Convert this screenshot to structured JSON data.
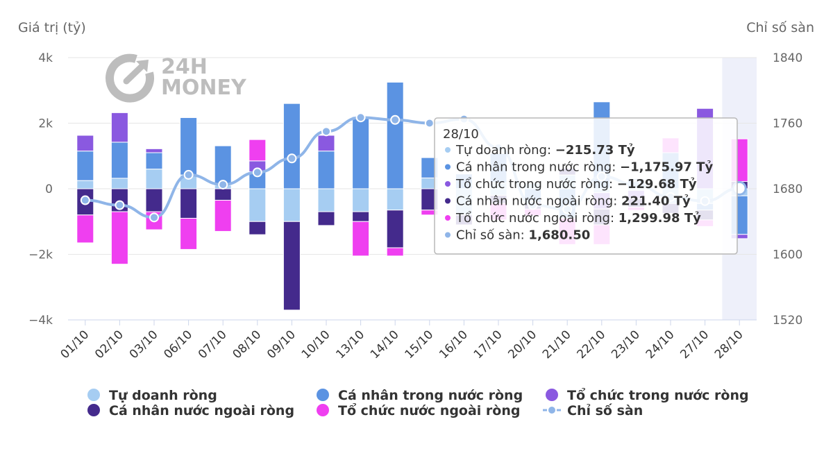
{
  "colors": {
    "tu_doanh": "#a6cdf2",
    "ca_nhan_tn": "#5b93e2",
    "to_chuc_tn": "#8a59e0",
    "ca_nhan_nn": "#442a8c",
    "to_chuc_nn": "#ef3ff0",
    "index": "#8fb5e8",
    "grid": "#e6e6e6",
    "highlight": "#eef0fa"
  },
  "watermark": {
    "line1": "24H",
    "line2": "MONEY"
  },
  "chart_data": {
    "type": "bar",
    "stacked": true,
    "y_left_title": "Giá trị (tỷ)",
    "y_right_title": "Chỉ số sàn",
    "y_left_range": [
      -4000,
      4000
    ],
    "y_right_range": [
      1520,
      1840
    ],
    "y_left_ticks": [
      "4k",
      "2k",
      "0",
      "−2k",
      "−4k"
    ],
    "y_right_ticks": [
      "1840",
      "1760",
      "1680",
      "1600",
      "1520"
    ],
    "grid": true,
    "legend_position": "bottom",
    "categories": [
      "01/10",
      "02/10",
      "03/10",
      "06/10",
      "07/10",
      "08/10",
      "09/10",
      "10/10",
      "13/10",
      "14/10",
      "15/10",
      "16/10",
      "17/10",
      "20/10",
      "21/10",
      "22/10",
      "23/10",
      "24/10",
      "27/10",
      "28/10"
    ],
    "series": [
      {
        "name": "Tự doanh ròng",
        "key": "tu_doanh",
        "values": [
          250,
          320,
          600,
          420,
          110,
          0,
          0,
          0,
          0,
          0,
          330,
          0,
          180,
          170,
          420,
          -120,
          0,
          0,
          -450,
          -215.73
        ],
        "hidden_values": [
          0,
          0,
          0,
          0,
          0,
          -1000,
          -1000,
          -700,
          -700,
          -650,
          0,
          -800,
          -200,
          0,
          0,
          0,
          -50,
          -450,
          0,
          0
        ]
      },
      {
        "name": "Cá nhân trong nước ròng",
        "key": "ca_nhan_tn",
        "values": [
          900,
          1100,
          500,
          1750,
          1200,
          520,
          2600,
          1150,
          2200,
          3250,
          620,
          450,
          900,
          -420,
          -900,
          2650,
          300,
          1100,
          -200,
          -1175.97
        ]
      },
      {
        "name": "Tổ chức trong nước ròng",
        "key": "to_chuc_tn",
        "values": [
          480,
          900,
          120,
          0,
          0,
          330,
          0,
          480,
          0,
          0,
          0,
          0,
          0,
          0,
          0,
          -500,
          -250,
          0,
          2450,
          -129.68
        ]
      },
      {
        "name": "Cá nhân nước ngoài ròng",
        "key": "ca_nhan_nn",
        "values": [
          -800,
          -700,
          -700,
          -900,
          -350,
          -400,
          -2700,
          -420,
          -300,
          -1150,
          -650,
          -300,
          -250,
          -200,
          200,
          -480,
          -260,
          -300,
          -300,
          221.4
        ]
      },
      {
        "name": "Tổ chức nước ngoài ròng",
        "key": "to_chuc_nn",
        "values": [
          -850,
          -1600,
          -550,
          -950,
          -950,
          650,
          0,
          0,
          -1050,
          -250,
          -150,
          0,
          -500,
          -200,
          -800,
          -600,
          -100,
          450,
          -200,
          1299.98
        ]
      }
    ],
    "line": {
      "name": "Chỉ số sàn",
      "key": "index",
      "values": [
        1666,
        1660,
        1645,
        1697,
        1685,
        1700,
        1717,
        1750,
        1767,
        1764,
        1760,
        1765,
        1730,
        1660,
        1655,
        1695,
        1685,
        1670,
        1665,
        1680.5
      ]
    },
    "highlighted_index": 19
  },
  "tooltip": {
    "title": "28/10",
    "rows": [
      {
        "label": "Tự doanh ròng: ",
        "value": "−215.73 Tỷ",
        "key": "tu_doanh"
      },
      {
        "label": "Cá nhân trong nước ròng: ",
        "value": "−1,175.97 Tỷ",
        "key": "ca_nhan_tn"
      },
      {
        "label": "Tổ chức trong nước ròng: ",
        "value": "−129.68 Tỷ",
        "key": "to_chuc_tn"
      },
      {
        "label": "Cá nhân nước ngoài ròng: ",
        "value": "221.40 Tỷ",
        "key": "ca_nhan_nn"
      },
      {
        "label": "Tổ chức nước ngoài ròng: ",
        "value": "1,299.98 Tỷ",
        "key": "to_chuc_nn"
      },
      {
        "label": "Chỉ số sàn: ",
        "value": "1,680.50",
        "key": "index"
      }
    ]
  },
  "legend": [
    {
      "label": "Tự doanh ròng",
      "key": "tu_doanh",
      "shape": "circle"
    },
    {
      "label": "Cá nhân trong nước ròng",
      "key": "ca_nhan_tn",
      "shape": "circle"
    },
    {
      "label": "Tổ chức trong nước ròng",
      "key": "to_chuc_tn",
      "shape": "circle"
    },
    {
      "label": "Cá nhân nước ngoài ròng",
      "key": "ca_nhan_nn",
      "shape": "circle"
    },
    {
      "label": "Tổ chức nước ngoài ròng",
      "key": "to_chuc_nn",
      "shape": "circle"
    },
    {
      "label": "Chỉ số sàn",
      "key": "index",
      "shape": "line"
    }
  ]
}
